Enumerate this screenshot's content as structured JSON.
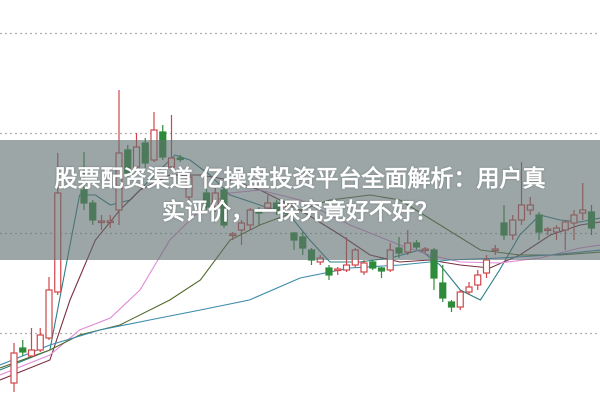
{
  "title": {
    "line1": "股票配资渠道 亿操盘投资平台全面解析：用户真",
    "line2": "实评价，一探究竟好不好？"
  },
  "colors": {
    "up": "#d0454a",
    "down": "#2e8b3a",
    "grid": "#b0b0b0",
    "ma_lines": [
      "#2a7f86",
      "#7a2e3e",
      "#e08ad8",
      "#4f6a2a",
      "#3a8aaa"
    ]
  },
  "chart_data": {
    "type": "candlestick",
    "title": "",
    "xlabel": "",
    "ylabel": "",
    "grid": true,
    "grid_style": "dotted horizontal",
    "grid_levels": [
      367,
      267,
      167,
      67
    ],
    "ylim": [
      0,
      400
    ],
    "candles": [
      {
        "t": 0,
        "o": 17,
        "h": 57,
        "l": 8,
        "c": 47
      },
      {
        "t": 1,
        "o": 52,
        "h": 60,
        "l": 44,
        "c": 48
      },
      {
        "t": 2,
        "o": 44,
        "h": 72,
        "l": 42,
        "c": 50
      },
      {
        "t": 3,
        "o": 50,
        "h": 72,
        "l": 48,
        "c": 65
      },
      {
        "t": 4,
        "o": 62,
        "h": 123,
        "l": 60,
        "c": 110
      },
      {
        "t": 5,
        "o": 108,
        "h": 247,
        "l": 105,
        "c": 207
      },
      {
        "t": 8,
        "o": 210,
        "h": 248,
        "l": 190,
        "c": 197
      },
      {
        "t": 9,
        "o": 197,
        "h": 200,
        "l": 175,
        "c": 180
      },
      {
        "t": 10,
        "o": 178,
        "h": 185,
        "l": 170,
        "c": 179
      },
      {
        "t": 11,
        "o": 178,
        "h": 185,
        "l": 172,
        "c": 179
      },
      {
        "t": 12,
        "o": 190,
        "h": 310,
        "l": 175,
        "c": 247
      },
      {
        "t": 13,
        "o": 250,
        "h": 255,
        "l": 222,
        "c": 227
      },
      {
        "t": 14,
        "o": 233,
        "h": 267,
        "l": 230,
        "c": 253
      },
      {
        "t": 15,
        "o": 257,
        "h": 262,
        "l": 232,
        "c": 237
      },
      {
        "t": 16,
        "o": 240,
        "h": 288,
        "l": 238,
        "c": 270
      },
      {
        "t": 17,
        "o": 268,
        "h": 275,
        "l": 240,
        "c": 243
      },
      {
        "t": 18,
        "o": 233,
        "h": 285,
        "l": 230,
        "c": 242
      },
      {
        "t": 19,
        "o": 242,
        "h": 245,
        "l": 238,
        "c": 241
      },
      {
        "t": 20,
        "o": 203,
        "h": 228,
        "l": 200,
        "c": 223
      },
      {
        "t": 22,
        "o": 207,
        "h": 212,
        "l": 190,
        "c": 193
      },
      {
        "t": 23,
        "o": 193,
        "h": 212,
        "l": 188,
        "c": 207
      },
      {
        "t": 24,
        "o": 210,
        "h": 212,
        "l": 172,
        "c": 175
      },
      {
        "t": 25,
        "o": 165,
        "h": 168,
        "l": 160,
        "c": 166
      },
      {
        "t": 26,
        "o": 170,
        "h": 180,
        "l": 155,
        "c": 177
      },
      {
        "t": 27,
        "o": 175,
        "h": 192,
        "l": 170,
        "c": 190
      },
      {
        "t": 28,
        "o": 190,
        "h": 193,
        "l": 175,
        "c": 187
      },
      {
        "t": 29,
        "o": 192,
        "h": 205,
        "l": 188,
        "c": 197
      },
      {
        "t": 30,
        "o": 197,
        "h": 200,
        "l": 185,
        "c": 190
      },
      {
        "t": 31,
        "o": 194,
        "h": 197,
        "l": 190,
        "c": 195
      },
      {
        "t": 32,
        "o": 167,
        "h": 168,
        "l": 150,
        "c": 160
      },
      {
        "t": 33,
        "o": 163,
        "h": 168,
        "l": 145,
        "c": 152
      },
      {
        "t": 34,
        "o": 150,
        "h": 152,
        "l": 135,
        "c": 140
      },
      {
        "t": 35,
        "o": 138,
        "h": 145,
        "l": 135,
        "c": 142
      },
      {
        "t": 36,
        "o": 132,
        "h": 135,
        "l": 120,
        "c": 125
      },
      {
        "t": 37,
        "o": 130,
        "h": 133,
        "l": 125,
        "c": 131
      },
      {
        "t": 38,
        "o": 130,
        "h": 163,
        "l": 128,
        "c": 135
      },
      {
        "t": 39,
        "o": 135,
        "h": 152,
        "l": 132,
        "c": 150
      },
      {
        "t": 40,
        "o": 128,
        "h": 140,
        "l": 125,
        "c": 137
      },
      {
        "t": 41,
        "o": 138,
        "h": 140,
        "l": 130,
        "c": 132
      },
      {
        "t": 42,
        "o": 132,
        "h": 133,
        "l": 122,
        "c": 129
      },
      {
        "t": 43,
        "o": 130,
        "h": 157,
        "l": 128,
        "c": 150
      },
      {
        "t": 44,
        "o": 152,
        "h": 163,
        "l": 142,
        "c": 147
      },
      {
        "t": 45,
        "o": 148,
        "h": 170,
        "l": 145,
        "c": 157
      },
      {
        "t": 46,
        "o": 157,
        "h": 160,
        "l": 150,
        "c": 153
      },
      {
        "t": 47,
        "o": 150,
        "h": 153,
        "l": 147,
        "c": 151
      },
      {
        "t": 48,
        "o": 150,
        "h": 152,
        "l": 110,
        "c": 122
      },
      {
        "t": 49,
        "o": 117,
        "h": 135,
        "l": 98,
        "c": 102
      },
      {
        "t": 50,
        "o": 98,
        "h": 100,
        "l": 88,
        "c": 93
      },
      {
        "t": 51,
        "o": 93,
        "h": 110,
        "l": 90,
        "c": 108
      },
      {
        "t": 52,
        "o": 108,
        "h": 118,
        "l": 105,
        "c": 113
      },
      {
        "t": 53,
        "o": 115,
        "h": 130,
        "l": 110,
        "c": 125
      },
      {
        "t": 54,
        "o": 127,
        "h": 145,
        "l": 122,
        "c": 140
      },
      {
        "t": 55,
        "o": 150,
        "h": 155,
        "l": 145,
        "c": 151
      },
      {
        "t": 56,
        "o": 177,
        "h": 195,
        "l": 160,
        "c": 165
      },
      {
        "t": 57,
        "o": 165,
        "h": 185,
        "l": 160,
        "c": 180
      },
      {
        "t": 58,
        "o": 180,
        "h": 238,
        "l": 175,
        "c": 195
      },
      {
        "t": 59,
        "o": 190,
        "h": 203,
        "l": 185,
        "c": 195
      },
      {
        "t": 60,
        "o": 185,
        "h": 188,
        "l": 160,
        "c": 168
      },
      {
        "t": 61,
        "o": 170,
        "h": 173,
        "l": 165,
        "c": 171
      },
      {
        "t": 62,
        "o": 168,
        "h": 175,
        "l": 160,
        "c": 172
      },
      {
        "t": 63,
        "o": 170,
        "h": 180,
        "l": 150,
        "c": 178
      },
      {
        "t": 64,
        "o": 177,
        "h": 190,
        "l": 160,
        "c": 185
      },
      {
        "t": 65,
        "o": 187,
        "h": 217,
        "l": 180,
        "c": 190
      },
      {
        "t": 66,
        "o": 188,
        "h": 195,
        "l": 165,
        "c": 172
      }
    ],
    "moving_averages": [
      {
        "points": [
          [
            -1.6,
            30
          ],
          [
            4.1,
            50
          ],
          [
            7.5,
            205
          ],
          [
            9.3,
            205
          ],
          [
            11,
            195
          ],
          [
            13.3,
            200
          ],
          [
            15.5,
            220
          ],
          [
            18.4,
            245
          ],
          [
            20.1,
            240
          ],
          [
            22.4,
            225
          ],
          [
            24.7,
            205
          ],
          [
            28.1,
            195
          ],
          [
            31.5,
            185
          ],
          [
            33.8,
            160
          ],
          [
            36.1,
            138
          ],
          [
            39.5,
            138
          ],
          [
            43,
            142
          ],
          [
            46.4,
            150
          ],
          [
            48.7,
            135
          ],
          [
            51,
            110
          ],
          [
            53.3,
            100
          ],
          [
            55.5,
            130
          ],
          [
            57.8,
            165
          ],
          [
            60.1,
            185
          ],
          [
            62.4,
            180
          ],
          [
            64.7,
            178
          ],
          [
            67,
            182
          ]
        ]
      },
      {
        "points": [
          [
            -1.6,
            20
          ],
          [
            4.1,
            40
          ],
          [
            6.4,
            100
          ],
          [
            9.3,
            160
          ],
          [
            12.1,
            190
          ],
          [
            14.4,
            210
          ],
          [
            17.8,
            225
          ],
          [
            21.3,
            225
          ],
          [
            24.7,
            220
          ],
          [
            28.1,
            210
          ],
          [
            32.7,
            190
          ],
          [
            37.3,
            165
          ],
          [
            40.7,
            145
          ],
          [
            44.1,
            138
          ],
          [
            47.5,
            140
          ],
          [
            51,
            135
          ],
          [
            54.4,
            132
          ],
          [
            57.8,
            145
          ],
          [
            61.3,
            165
          ],
          [
            64.7,
            175
          ],
          [
            67,
            178
          ]
        ]
      },
      {
        "points": [
          [
            -1.6,
            25
          ],
          [
            4.1,
            45
          ],
          [
            7.5,
            70
          ],
          [
            11,
            82
          ],
          [
            14.4,
            110
          ],
          [
            17.8,
            160
          ],
          [
            21.3,
            190
          ],
          [
            24.7,
            207
          ],
          [
            28.1,
            210
          ],
          [
            32.7,
            200
          ],
          [
            38.4,
            175
          ],
          [
            44.1,
            155
          ],
          [
            47.5,
            145
          ],
          [
            51,
            138
          ],
          [
            55.5,
            137
          ],
          [
            60.1,
            142
          ],
          [
            64.7,
            152
          ],
          [
            67,
            155
          ]
        ]
      },
      {
        "points": [
          [
            -1.6,
            32
          ],
          [
            4.1,
            50
          ],
          [
            7.5,
            65
          ],
          [
            12.1,
            75
          ],
          [
            17.8,
            100
          ],
          [
            21.3,
            120
          ],
          [
            24.7,
            160
          ],
          [
            28.1,
            175
          ],
          [
            32.7,
            190
          ],
          [
            36.1,
            200
          ],
          [
            40.7,
            205
          ],
          [
            44.1,
            200
          ],
          [
            48.7,
            175
          ],
          [
            53.3,
            150
          ],
          [
            57.8,
            145
          ],
          [
            62.4,
            145
          ],
          [
            67,
            148
          ]
        ]
      },
      {
        "points": [
          [
            -1.6,
            35
          ],
          [
            4.1,
            55
          ],
          [
            9.8,
            70
          ],
          [
            15.5,
            80
          ],
          [
            21.3,
            90
          ],
          [
            26.9,
            100
          ],
          [
            32.7,
            122
          ],
          [
            38.4,
            132
          ],
          [
            44.1,
            135
          ],
          [
            49.8,
            140
          ],
          [
            55.5,
            142
          ],
          [
            61.3,
            145
          ],
          [
            67,
            150
          ]
        ]
      }
    ]
  }
}
